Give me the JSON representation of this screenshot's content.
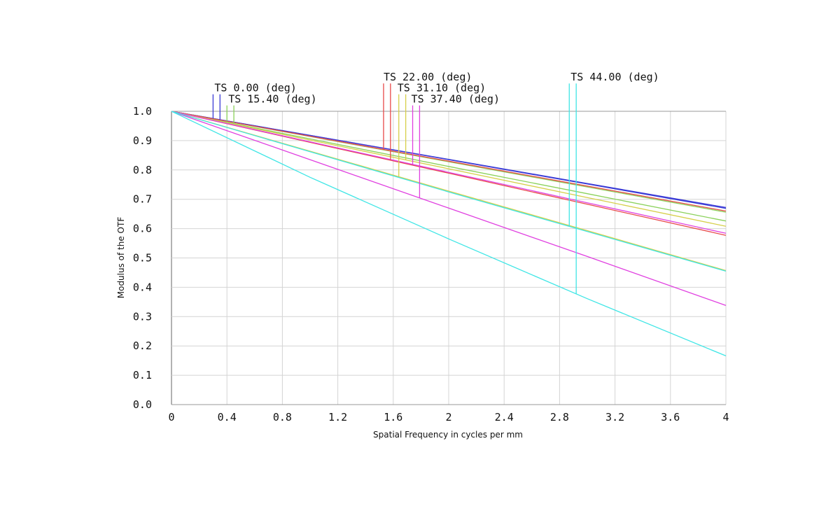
{
  "chart_data": {
    "type": "line",
    "xlabel": "Spatial Frequency in cycles per mm",
    "ylabel": "Modulus of the OTF",
    "xlim": [
      0,
      4
    ],
    "ylim": [
      0,
      1
    ],
    "x_ticks": [
      "0",
      "0.4",
      "0.8",
      "1.2",
      "1.6",
      "2",
      "2.4",
      "2.8",
      "3.2",
      "3.6",
      "4"
    ],
    "y_ticks": [
      "0.0",
      "0.1",
      "0.2",
      "0.3",
      "0.4",
      "0.5",
      "0.6",
      "0.7",
      "0.8",
      "0.9",
      "1.0"
    ],
    "grid": true,
    "legend_labels": [
      {
        "text": "TS 0.00 (deg)",
        "anchor_x": 0.3,
        "anchor_y": 1.068
      },
      {
        "text": "TS 15.40 (deg)",
        "anchor_x": 0.4,
        "anchor_y": 1.03
      },
      {
        "text": "TS 22.00 (deg)",
        "anchor_x": 1.52,
        "anchor_y": 1.105
      },
      {
        "text": "TS 31.10 (deg)",
        "anchor_x": 1.62,
        "anchor_y": 1.068
      },
      {
        "text": "TS 37.40 (deg)",
        "anchor_x": 1.72,
        "anchor_y": 1.03
      },
      {
        "text": "TS 44.00 (deg)",
        "anchor_x": 2.87,
        "anchor_y": 1.105
      }
    ],
    "series": [
      {
        "color": "#3b3bd6",
        "values": [
          1,
          0.918,
          0.835,
          0.752,
          0.669
        ],
        "marker_x": 0.3,
        "marker_top": 1.058
      },
      {
        "color": "#3b3bd6",
        "values": [
          1,
          0.918,
          0.836,
          0.754,
          0.672
        ],
        "marker_x": 0.35,
        "marker_top": 1.058
      },
      {
        "color": "#8ad15a",
        "values": [
          1,
          0.914,
          0.828,
          0.742,
          0.656
        ],
        "marker_x": 0.4,
        "marker_top": 1.02
      },
      {
        "color": "#8ad15a",
        "values": [
          1,
          0.906,
          0.812,
          0.719,
          0.626
        ],
        "marker_x": 0.45,
        "marker_top": 1.02
      },
      {
        "color": "#e84a4a",
        "values": [
          1,
          0.915,
          0.83,
          0.745,
          0.66
        ],
        "marker_x": 1.53,
        "marker_top": 1.095
      },
      {
        "color": "#e84a4a",
        "values": [
          1,
          0.894,
          0.789,
          0.683,
          0.577
        ],
        "marker_x": 1.58,
        "marker_top": 1.095
      },
      {
        "color": "#d6cf4a",
        "values": [
          1,
          0.864,
          0.728,
          0.593,
          0.457
        ],
        "marker_x": 1.64,
        "marker_top": 1.058
      },
      {
        "color": "#d6cf4a",
        "values": [
          1,
          0.902,
          0.804,
          0.706,
          0.608
        ],
        "marker_x": 1.69,
        "marker_top": 1.058
      },
      {
        "color": "#e040e0",
        "values": [
          1,
          0.896,
          0.792,
          0.688,
          0.584
        ],
        "marker_x": 1.74,
        "marker_top": 1.02
      },
      {
        "color": "#e040e0",
        "values": [
          1,
          0.835,
          0.67,
          0.505,
          0.338
        ],
        "marker_x": 1.79,
        "marker_top": 1.02
      },
      {
        "color": "#40e6e6",
        "values": [
          1,
          0.862,
          0.725,
          0.59,
          0.455
        ],
        "marker_x": 2.87,
        "marker_top": 1.095
      },
      {
        "color": "#40e6e6",
        "values": [
          1,
          0.775,
          0.565,
          0.361,
          0.166
        ],
        "marker_x": 2.92,
        "marker_top": 1.095
      }
    ]
  }
}
